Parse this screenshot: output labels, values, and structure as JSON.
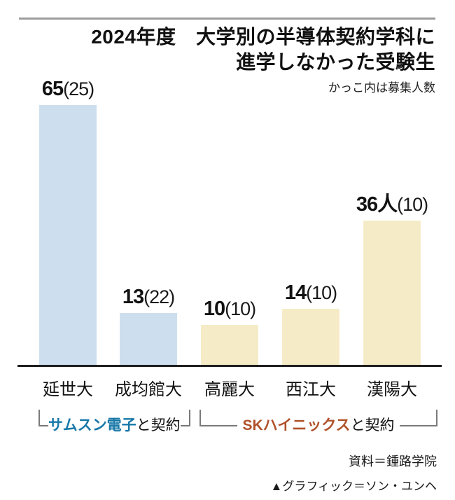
{
  "header": {
    "title_line1": "2024年度　大学別の半導体契約学科に",
    "title_line2": "進学しなかった受験生",
    "subtitle": "かっこ内は募集人数"
  },
  "chart_data": {
    "type": "bar",
    "title": "2024年度 大学別の半導体契約学科に進学しなかった受験生",
    "note": "かっこ内は募集人数",
    "categories": [
      "延世大",
      "成均館大",
      "高麗大",
      "西江大",
      "漢陽大"
    ],
    "values": [
      65,
      13,
      10,
      14,
      36
    ],
    "quotas": [
      25,
      22,
      10,
      10,
      10
    ],
    "bar_labels": [
      {
        "num": "65",
        "paren": "(25)"
      },
      {
        "num": "13",
        "paren": "(22)"
      },
      {
        "num": "10",
        "paren": "(10)"
      },
      {
        "num": "14",
        "paren": "(10)"
      },
      {
        "num": "36人",
        "paren": "(10)"
      }
    ],
    "ylim": [
      0,
      70
    ],
    "grid": false,
    "groups": [
      {
        "company": "サムスン電子",
        "rest": "と契約",
        "company_color": "#1878a8",
        "bar_color": "#cddfee",
        "bars": [
          0,
          1
        ]
      },
      {
        "company": "SKハイニックス",
        "rest": "と契約",
        "company_color": "#b0522b",
        "bar_color": "#f5ecc7",
        "bars": [
          2,
          3,
          4
        ]
      }
    ]
  },
  "footer": {
    "source": "資料＝鍾路学院",
    "credit": "▲グラフィック＝ソン・ユンヘ"
  },
  "colors": {
    "samsung_bar": "#cddfee",
    "sk_bar": "#f5ecc7",
    "samsung_text": "#1878a8",
    "sk_text": "#b0522b",
    "axis": "#1f1f1f",
    "top_rule": "#9c9c9c",
    "bracket": "#7a7a7a"
  }
}
